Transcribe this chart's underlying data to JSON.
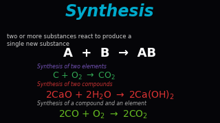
{
  "background_color": "#050508",
  "title": "Synthesis",
  "title_color": "#00aacc",
  "title_fontsize": 17,
  "subtitle_line1": "two or more substances react to produce a",
  "subtitle_line2": "single new substance",
  "subtitle_color": "#cccccc",
  "subtitle_fontsize": 6.0,
  "general_eq": "A  +  B  →  AB",
  "general_eq_color": "#ffffff",
  "general_eq_fontsize": 13,
  "label1": "Synthesis of two elements",
  "label1_color": "#7755bb",
  "label_fontsize": 5.5,
  "eq1_color": "#33aa55",
  "eq1_fontsize": 9,
  "label2": "Synthesis of two compounds",
  "label2_color": "#cc3333",
  "eq2_color": "#dd3333",
  "eq2_fontsize": 10,
  "label3": "Synthesis of a compound and an element",
  "label3_color": "#aaaaaa",
  "eq3_color": "#66bb22",
  "eq3_fontsize": 10
}
